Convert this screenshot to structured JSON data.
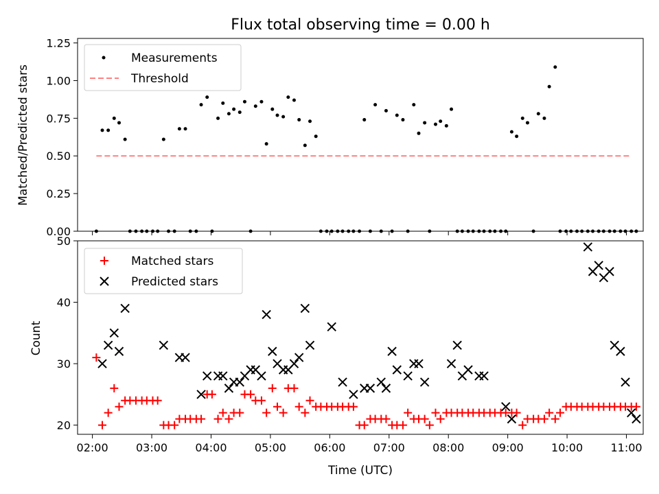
{
  "chart_data": [
    {
      "type": "scatter",
      "title": "Flux total observing time = 0.00 h",
      "xlabel": "",
      "ylabel": "Matched/Predicted stars",
      "ylim": [
        0,
        1.28
      ],
      "yticks": [
        "0.00",
        "0.25",
        "0.50",
        "0.75",
        "1.00",
        "1.25"
      ],
      "legend_position": "top-left",
      "series": [
        {
          "name": "Measurements",
          "marker": "dot",
          "color": "#000000",
          "x": [
            "02:04",
            "02:10",
            "02:16",
            "02:22",
            "02:27",
            "02:33",
            "02:38",
            "02:44",
            "02:50",
            "02:55",
            "03:01",
            "03:06",
            "03:12",
            "03:17",
            "03:23",
            "03:28",
            "03:34",
            "03:39",
            "03:45",
            "03:50",
            "03:56",
            "04:01",
            "04:07",
            "04:12",
            "04:18",
            "04:23",
            "04:29",
            "04:34",
            "04:40",
            "04:45",
            "04:51",
            "04:56",
            "05:02",
            "05:07",
            "05:13",
            "05:18",
            "05:24",
            "05:29",
            "05:35",
            "05:40",
            "05:46",
            "05:51",
            "05:57",
            "06:02",
            "06:08",
            "06:13",
            "06:19",
            "06:24",
            "06:30",
            "06:35",
            "06:41",
            "06:46",
            "06:52",
            "06:57",
            "07:03",
            "07:08",
            "07:14",
            "07:19",
            "07:25",
            "07:30",
            "07:36",
            "07:41",
            "07:47",
            "07:52",
            "07:58",
            "08:03",
            "08:09",
            "08:14",
            "08:20",
            "08:25",
            "08:31",
            "08:36",
            "08:42",
            "08:47",
            "08:53",
            "08:58",
            "09:04",
            "09:09",
            "09:15",
            "09:20",
            "09:26",
            "09:31",
            "09:37",
            "09:42",
            "09:48",
            "09:53",
            "09:59",
            "10:04",
            "10:10",
            "10:15",
            "10:21",
            "10:26",
            "10:32",
            "10:37",
            "10:43",
            "10:48",
            "10:54",
            "10:59",
            "11:05",
            "11:10"
          ],
          "y": [
            0.0,
            0.67,
            0.67,
            0.75,
            0.72,
            0.61,
            0.0,
            0.0,
            0.0,
            0.0,
            0.0,
            0.0,
            0.61,
            0.0,
            0.0,
            0.68,
            0.68,
            0.0,
            0.0,
            0.84,
            0.89,
            0.0,
            0.75,
            0.85,
            0.78,
            0.81,
            0.79,
            0.86,
            0.0,
            0.83,
            0.86,
            0.58,
            0.81,
            0.77,
            0.76,
            0.89,
            0.87,
            0.74,
            0.57,
            0.73,
            0.63,
            0.0,
            0.0,
            0.0,
            0.0,
            0.0,
            0.0,
            0.0,
            0.0,
            0.74,
            0.0,
            0.84,
            0.0,
            0.8,
            0.0,
            0.77,
            0.74,
            0.0,
            0.84,
            0.65,
            0.72,
            0.0,
            0.71,
            0.73,
            0.7,
            0.81,
            0.0,
            0.0,
            0.0,
            0.0,
            0.0,
            0.0,
            0.0,
            0.0,
            0.0,
            0.0,
            0.66,
            0.63,
            0.75,
            0.72,
            0.0,
            0.78,
            0.75,
            0.96,
            1.09,
            0.0,
            0.0,
            0.0,
            0.0,
            0.0,
            0.0,
            0.0,
            0.0,
            0.0,
            0.0,
            0.0,
            0.0,
            0.0,
            0.0,
            0.0
          ]
        },
        {
          "name": "Threshold",
          "marker": "dashed-line",
          "color": "#ff7f7f",
          "x": [
            "02:04",
            "11:05"
          ],
          "y": [
            0.5,
            0.5
          ]
        }
      ]
    },
    {
      "type": "scatter",
      "title": "",
      "xlabel": "Time (UTC)",
      "ylabel": "Count",
      "ylim": [
        18.5,
        50
      ],
      "yticks": [
        "20",
        "30",
        "40",
        "50"
      ],
      "xticks": [
        "02:00",
        "03:00",
        "04:00",
        "05:00",
        "06:00",
        "07:00",
        "08:00",
        "09:00",
        "10:00",
        "11:00"
      ],
      "xlim": [
        "01:45",
        "11:17"
      ],
      "legend_position": "top-left",
      "series": [
        {
          "name": "Matched stars",
          "marker": "plus",
          "color": "#ff0000",
          "x": [
            "02:04",
            "02:10",
            "02:16",
            "02:22",
            "02:27",
            "02:33",
            "02:38",
            "02:44",
            "02:50",
            "02:55",
            "03:01",
            "03:06",
            "03:12",
            "03:17",
            "03:23",
            "03:28",
            "03:34",
            "03:39",
            "03:45",
            "03:50",
            "03:56",
            "04:01",
            "04:07",
            "04:12",
            "04:18",
            "04:23",
            "04:29",
            "04:34",
            "04:40",
            "04:45",
            "04:51",
            "04:56",
            "05:02",
            "05:07",
            "05:13",
            "05:18",
            "05:24",
            "05:29",
            "05:35",
            "05:40",
            "05:46",
            "05:51",
            "05:57",
            "06:02",
            "06:08",
            "06:13",
            "06:19",
            "06:24",
            "06:30",
            "06:35",
            "06:41",
            "06:46",
            "06:52",
            "06:57",
            "07:03",
            "07:08",
            "07:14",
            "07:19",
            "07:25",
            "07:30",
            "07:36",
            "07:41",
            "07:47",
            "07:52",
            "07:58",
            "08:03",
            "08:09",
            "08:14",
            "08:20",
            "08:25",
            "08:31",
            "08:36",
            "08:42",
            "08:47",
            "08:53",
            "08:58",
            "09:04",
            "09:09",
            "09:15",
            "09:20",
            "09:26",
            "09:31",
            "09:37",
            "09:42",
            "09:48",
            "09:53",
            "09:59",
            "10:04",
            "10:10",
            "10:15",
            "10:21",
            "10:26",
            "10:32",
            "10:37",
            "10:43",
            "10:48",
            "10:54",
            "10:59",
            "11:05",
            "11:10"
          ],
          "y": [
            31,
            20,
            22,
            26,
            23,
            24,
            24,
            24,
            24,
            24,
            24,
            24,
            20,
            20,
            20,
            21,
            21,
            21,
            21,
            21,
            25,
            25,
            21,
            22,
            21,
            22,
            22,
            25,
            25,
            24,
            24,
            22,
            26,
            23,
            22,
            26,
            26,
            23,
            22,
            24,
            23,
            23,
            23,
            23,
            23,
            23,
            23,
            23,
            20,
            20,
            21,
            21,
            21,
            21,
            20,
            20,
            20,
            22,
            21,
            21,
            21,
            20,
            22,
            21,
            22,
            22,
            22,
            22,
            22,
            22,
            22,
            22,
            22,
            22,
            22,
            22,
            22,
            22,
            20,
            21,
            21,
            21,
            21,
            22,
            21,
            22,
            23,
            23,
            23,
            23,
            23,
            23,
            23,
            23,
            23,
            23,
            23,
            23,
            23,
            23
          ]
        },
        {
          "name": "Predicted stars",
          "marker": "x",
          "color": "#000000",
          "x": [
            "02:10",
            "02:16",
            "02:22",
            "02:27",
            "02:33",
            "03:12",
            "03:28",
            "03:34",
            "03:50",
            "03:56",
            "04:07",
            "04:12",
            "04:18",
            "04:23",
            "04:29",
            "04:34",
            "04:40",
            "04:45",
            "04:51",
            "04:56",
            "05:02",
            "05:07",
            "05:13",
            "05:18",
            "05:24",
            "05:29",
            "05:35",
            "05:40",
            "06:02",
            "06:13",
            "06:24",
            "06:35",
            "06:41",
            "06:52",
            "06:57",
            "07:03",
            "07:08",
            "07:19",
            "07:25",
            "07:30",
            "07:36",
            "08:03",
            "08:09",
            "08:14",
            "08:20",
            "08:31",
            "08:36",
            "08:58",
            "09:04",
            "10:21",
            "10:26",
            "10:32",
            "10:37",
            "10:43",
            "10:48",
            "10:54",
            "10:59",
            "11:05",
            "11:10"
          ],
          "y": [
            30,
            33,
            35,
            32,
            39,
            33,
            31,
            31,
            25,
            28,
            28,
            28,
            26,
            27,
            27,
            28,
            29,
            29,
            28,
            38,
            32,
            30,
            29,
            29,
            30,
            31,
            39,
            33,
            36,
            27,
            25,
            26,
            26,
            27,
            26,
            32,
            29,
            28,
            30,
            30,
            27,
            30,
            33,
            28,
            29,
            28,
            28,
            23,
            21,
            49,
            45,
            46,
            44,
            45,
            33,
            32,
            27,
            22,
            21
          ]
        }
      ]
    }
  ]
}
